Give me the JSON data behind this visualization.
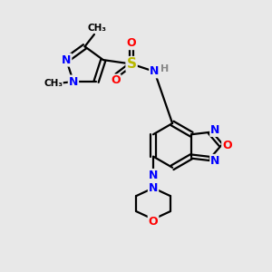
{
  "background_color": "#e8e8e8",
  "bond_color": "#000000",
  "atom_colors": {
    "N": "#0000ff",
    "O": "#ff0000",
    "S": "#b8b800",
    "H": "#888888",
    "C": "#000000"
  },
  "figsize": [
    3.0,
    3.0
  ],
  "dpi": 100
}
